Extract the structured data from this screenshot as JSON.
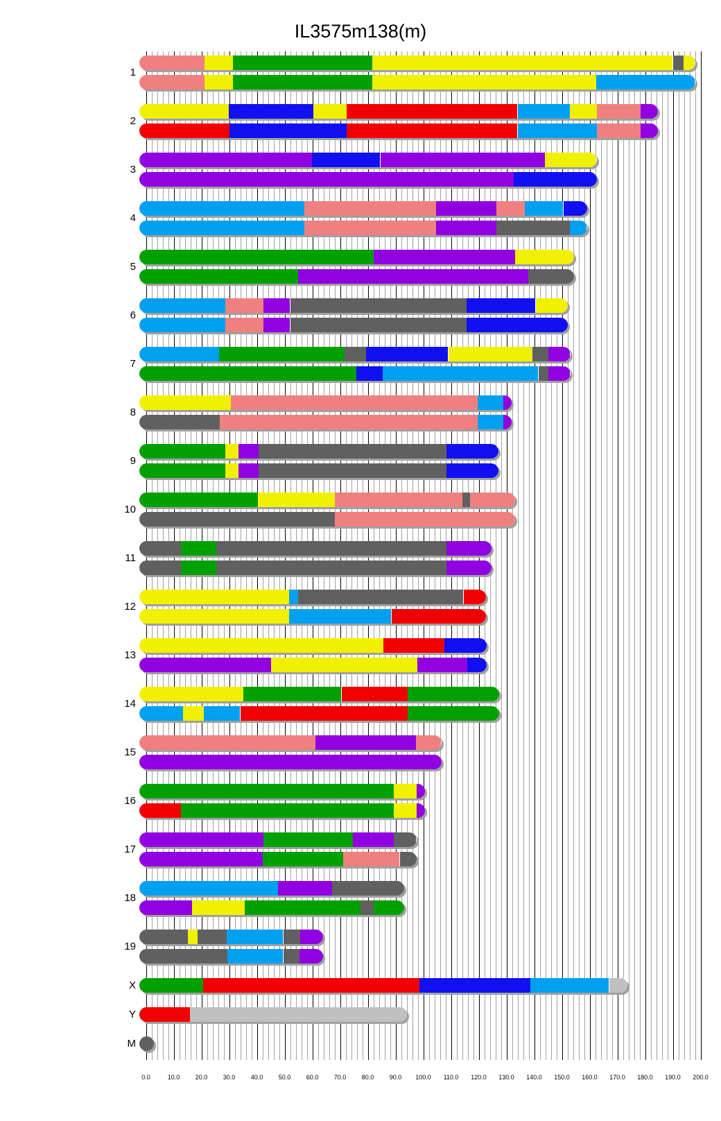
{
  "title": "IL3575m138(m)",
  "chart_data": {
    "type": "bar",
    "subtype": "chromosome-haplotype-painting",
    "title": "IL3575m138(m)",
    "xlim": [
      0,
      200
    ],
    "xlabel": "",
    "ylabel": "",
    "grid": true,
    "x_ticks": [
      "0.0",
      "10.0",
      "20.0",
      "30.0",
      "40.0",
      "50.0",
      "60.0",
      "70.0",
      "80.0",
      "90.0",
      "100.0",
      "110.0",
      "120.0",
      "130.0",
      "140.0",
      "150.0",
      "160.0",
      "170.0",
      "180.0",
      "190.0",
      "200.0"
    ],
    "colors": {
      "pink": "#F08080",
      "yellow": "#F0F000",
      "green": "#00A000",
      "blue": "#1010F0",
      "skyblue": "#00A0F0",
      "red": "#F00000",
      "purple": "#9000E0",
      "grey": "#606060",
      "lightgrey": "#C0C0C0"
    },
    "chromosomes": [
      {
        "label": "1",
        "end": 195.5,
        "rows": [
          [
            [
              "pink",
              0,
              21
            ],
            [
              "yellow",
              21,
              31.4
            ],
            [
              "green",
              31.4,
              81.7
            ],
            [
              "yellow",
              81.7,
              190
            ],
            [
              "grey",
              190,
              193.8
            ],
            [
              "yellow",
              193.8,
              195.5
            ]
          ],
          [
            [
              "pink",
              0,
              21
            ],
            [
              "yellow",
              21,
              31.4
            ],
            [
              "green",
              31.4,
              81.7
            ],
            [
              "yellow",
              81.7,
              162.4
            ],
            [
              "skyblue",
              162.4,
              195.5
            ]
          ]
        ]
      },
      {
        "label": "2",
        "end": 182.1,
        "rows": [
          [
            [
              "yellow",
              0,
              29.9
            ],
            [
              "blue",
              29.9,
              60.3
            ],
            [
              "yellow",
              60.3,
              72.4
            ],
            [
              "red",
              72.4,
              134
            ],
            [
              "skyblue",
              134,
              152.8
            ],
            [
              "yellow",
              152.8,
              162.6
            ],
            [
              "pink",
              162.6,
              178.4
            ],
            [
              "purple",
              178.4,
              182.1
            ]
          ],
          [
            [
              "red",
              0,
              30
            ],
            [
              "blue",
              30,
              72.4
            ],
            [
              "red",
              72.4,
              134
            ],
            [
              "skyblue",
              134,
              162.6
            ],
            [
              "pink",
              162.6,
              178.4
            ],
            [
              "purple",
              178.4,
              182.1
            ]
          ]
        ]
      },
      {
        "label": "3",
        "end": 160.0,
        "rows": [
          [
            [
              "purple",
              0,
              59.8
            ],
            [
              "blue",
              59.8,
              84.5
            ],
            [
              "purple",
              84.5,
              143.8
            ],
            [
              "yellow",
              143.8,
              160
            ]
          ],
          [
            [
              "purple",
              0,
              132.5
            ],
            [
              "blue",
              132.5,
              160
            ]
          ]
        ]
      },
      {
        "label": "4",
        "end": 156.5,
        "rows": [
          [
            [
              "skyblue",
              0,
              57.2
            ],
            [
              "pink",
              57.2,
              104.6
            ],
            [
              "purple",
              104.6,
              126.3
            ],
            [
              "pink",
              126.3,
              136.6
            ],
            [
              "skyblue",
              136.6,
              150.5
            ],
            [
              "blue",
              150.5,
              156.5
            ]
          ],
          [
            [
              "skyblue",
              0,
              57.2
            ],
            [
              "pink",
              57.2,
              104.6
            ],
            [
              "purple",
              104.6,
              126.3
            ],
            [
              "grey",
              126.3,
              152.8
            ],
            [
              "skyblue",
              152.8,
              156.5
            ]
          ]
        ]
      },
      {
        "label": "5",
        "end": 151.8,
        "rows": [
          [
            [
              "green",
              0,
              82.2
            ],
            [
              "purple",
              82.2,
              133.2
            ],
            [
              "yellow",
              133.2,
              151.8
            ]
          ],
          [
            [
              "green",
              0,
              54.9
            ],
            [
              "purple",
              54.9,
              137.9
            ],
            [
              "grey",
              137.9,
              151.8
            ]
          ]
        ]
      },
      {
        "label": "6",
        "end": 149.7,
        "rows": [
          [
            [
              "skyblue",
              0,
              28.6
            ],
            [
              "pink",
              28.6,
              42.3
            ],
            [
              "purple",
              42.3,
              52
            ],
            [
              "grey",
              52,
              115.7
            ],
            [
              "blue",
              115.7,
              140.5
            ],
            [
              "yellow",
              140.5,
              149.7
            ]
          ],
          [
            [
              "skyblue",
              0,
              28.6
            ],
            [
              "pink",
              28.6,
              42.3
            ],
            [
              "purple",
              42.3,
              52
            ],
            [
              "grey",
              52,
              115.7
            ],
            [
              "blue",
              115.7,
              149.7
            ]
          ]
        ]
      },
      {
        "label": "7",
        "end": 150.5,
        "rows": [
          [
            [
              "skyblue",
              0,
              26.3
            ],
            [
              "green",
              26.3,
              71.6
            ],
            [
              "grey",
              71.6,
              79.4
            ],
            [
              "blue",
              79.4,
              109
            ],
            [
              "yellow",
              109,
              139.4
            ],
            [
              "grey",
              139.4,
              145.1
            ],
            [
              "purple",
              145.1,
              150.5
            ]
          ],
          [
            [
              "green",
              0,
              75.8
            ],
            [
              "blue",
              75.8,
              85.3
            ],
            [
              "skyblue",
              85.3,
              141.5
            ],
            [
              "grey",
              141.5,
              145.1
            ],
            [
              "purple",
              145.1,
              150.5
            ]
          ]
        ]
      },
      {
        "label": "8",
        "end": 129.4,
        "rows": [
          [
            [
              "yellow",
              0,
              30.6
            ],
            [
              "pink",
              30.6,
              119.6
            ],
            [
              "skyblue",
              119.6,
              128.8
            ],
            [
              "purple",
              128.8,
              129.4
            ]
          ],
          [
            [
              "grey",
              0,
              26.5
            ],
            [
              "pink",
              26.5,
              119.6
            ],
            [
              "skyblue",
              119.6,
              128.8
            ],
            [
              "purple",
              128.8,
              129.4
            ]
          ]
        ]
      },
      {
        "label": "9",
        "end": 124.6,
        "rows": [
          [
            [
              "green",
              0,
              28.6
            ],
            [
              "yellow",
              28.6,
              33.3
            ],
            [
              "purple",
              33.3,
              40.6
            ],
            [
              "grey",
              40.6,
              108.4
            ],
            [
              "blue",
              108.4,
              124.6
            ]
          ],
          [
            [
              "green",
              0,
              28.6
            ],
            [
              "yellow",
              28.6,
              33.3
            ],
            [
              "purple",
              33.3,
              40.6
            ],
            [
              "grey",
              40.6,
              108.4
            ],
            [
              "blue",
              108.4,
              124.6
            ]
          ]
        ]
      },
      {
        "label": "10",
        "end": 130.7,
        "rows": [
          [
            [
              "green",
              0,
              40.4
            ],
            [
              "yellow",
              40.4,
              68.1
            ],
            [
              "pink",
              68.1,
              114.1
            ],
            [
              "grey",
              114.1,
              116.8
            ],
            [
              "pink",
              116.8,
              130.7
            ]
          ],
          [
            [
              "grey",
              0,
              68.1
            ],
            [
              "pink",
              68.1,
              130.7
            ]
          ]
        ]
      },
      {
        "label": "11",
        "end": 122.1,
        "rows": [
          [
            [
              "grey",
              0,
              12.5
            ],
            [
              "green",
              12.5,
              25.4
            ],
            [
              "grey",
              25.4,
              108.3
            ],
            [
              "purple",
              108.3,
              122.1
            ]
          ],
          [
            [
              "grey",
              0,
              12.5
            ],
            [
              "green",
              12.5,
              25.4
            ],
            [
              "grey",
              25.4,
              108.3
            ],
            [
              "purple",
              108.3,
              122.1
            ]
          ]
        ]
      },
      {
        "label": "12",
        "end": 120.1,
        "rows": [
          [
            [
              "yellow",
              0,
              51.6
            ],
            [
              "skyblue",
              51.6,
              54.8
            ],
            [
              "grey",
              54.8,
              114.5
            ],
            [
              "red",
              114.5,
              120.1
            ]
          ],
          [
            [
              "yellow",
              0,
              51.6
            ],
            [
              "skyblue",
              51.6,
              88.5
            ],
            [
              "red",
              88.5,
              120.1
            ]
          ]
        ]
      },
      {
        "label": "13",
        "end": 120.4,
        "rows": [
          [
            [
              "yellow",
              0,
              85.5
            ],
            [
              "red",
              85.5,
              107.5
            ],
            [
              "blue",
              107.5,
              120.4
            ]
          ],
          [
            [
              "purple",
              0,
              45
            ],
            [
              "yellow",
              45,
              97.8
            ],
            [
              "purple",
              97.8,
              115.8
            ],
            [
              "blue",
              115.8,
              120.4
            ]
          ]
        ]
      },
      {
        "label": "14",
        "end": 124.9,
        "rows": [
          [
            [
              "yellow",
              0,
              35.2
            ],
            [
              "green",
              35.2,
              70.5
            ],
            [
              "red",
              70.5,
              94.3
            ],
            [
              "green",
              94.3,
              124.9
            ]
          ],
          [
            [
              "skyblue",
              0,
              13.4
            ],
            [
              "yellow",
              13.4,
              20.9
            ],
            [
              "skyblue",
              20.9,
              34
            ],
            [
              "red",
              34,
              94.3
            ],
            [
              "green",
              94.3,
              124.9
            ]
          ]
        ]
      },
      {
        "label": "15",
        "end": 104.0,
        "rows": [
          [
            [
              "pink",
              0,
              61.1
            ],
            [
              "purple",
              61.1,
              97.4
            ],
            [
              "pink",
              97.4,
              104
            ]
          ],
          [
            [
              "purple",
              0,
              104
            ]
          ]
        ]
      },
      {
        "label": "16",
        "end": 98.2,
        "rows": [
          [
            [
              "green",
              0,
              89.4
            ],
            [
              "yellow",
              89.4,
              97.7
            ],
            [
              "purple",
              97.7,
              98.2
            ]
          ],
          [
            [
              "red",
              0,
              12.6
            ],
            [
              "green",
              12.6,
              89.4
            ],
            [
              "yellow",
              89.4,
              97.7
            ],
            [
              "purple",
              97.7,
              98.2
            ]
          ]
        ]
      },
      {
        "label": "17",
        "end": 95.0,
        "rows": [
          [
            [
              "purple",
              0,
              42.3
            ],
            [
              "green",
              42.3,
              74.7
            ],
            [
              "purple",
              74.7,
              89.4
            ],
            [
              "grey",
              89.4,
              95
            ]
          ],
          [
            [
              "purple",
              0,
              42.2
            ],
            [
              "green",
              42.2,
              71.1
            ],
            [
              "pink",
              71.1,
              91.5
            ],
            [
              "grey",
              91.5,
              95
            ]
          ]
        ]
      },
      {
        "label": "18",
        "end": 90.7,
        "rows": [
          [
            [
              "skyblue",
              0,
              47.5
            ],
            [
              "purple",
              47.5,
              67.2
            ],
            [
              "grey",
              67.2,
              90.7
            ]
          ],
          [
            [
              "purple",
              0,
              16.7
            ],
            [
              "yellow",
              16.7,
              35.7
            ],
            [
              "green",
              35.7,
              77.4
            ],
            [
              "grey",
              77.4,
              82.2
            ],
            [
              "green",
              82.2,
              90.7
            ]
          ]
        ]
      },
      {
        "label": "19",
        "end": 61.4,
        "rows": [
          [
            [
              "grey",
              0,
              15
            ],
            [
              "yellow",
              15,
              18.5
            ],
            [
              "grey",
              18.5,
              29.2
            ],
            [
              "skyblue",
              29.2,
              49.5
            ],
            [
              "grey",
              49.5,
              55.5
            ],
            [
              "purple",
              55.5,
              61.4
            ]
          ],
          [
            [
              "grey",
              0,
              29.4
            ],
            [
              "skyblue",
              29.4,
              49.5
            ],
            [
              "grey",
              49.5,
              55.4
            ],
            [
              "purple",
              55.4,
              61.4
            ]
          ]
        ]
      },
      {
        "label": "X",
        "end": 171.0,
        "rows": [
          [
            [
              "green",
              0,
              20.6
            ],
            [
              "red",
              20.6,
              98.7
            ],
            [
              "blue",
              98.7,
              138.7
            ],
            [
              "skyblue",
              138.7,
              167
            ],
            [
              "lightgrey",
              167,
              171
            ]
          ]
        ]
      },
      {
        "label": "Y",
        "end": 91.7,
        "rows": [
          [
            [
              "red",
              0,
              15.9
            ],
            [
              "lightgrey",
              15.9,
              91.7
            ]
          ]
        ]
      },
      {
        "label": "M",
        "end": 0.0,
        "rows": [
          [
            [
              "grey",
              0,
              0
            ]
          ]
        ]
      }
    ]
  }
}
